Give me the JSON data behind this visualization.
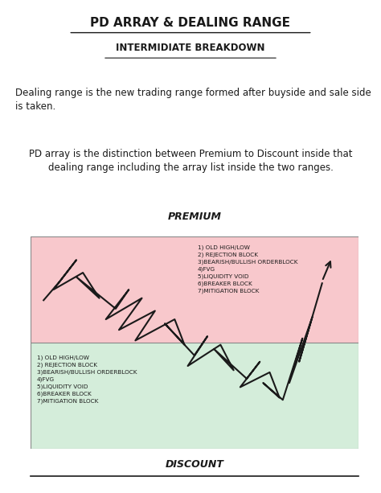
{
  "title1": "PD ARRAY & DEALING RANGE",
  "title2": "INTERMIDIATE BREAKDOWN",
  "para1": "Dealing range is the new trading range formed after buyside and sale side\nis taken.",
  "para2": "PD array is the distinction between Premium to Discount inside that\ndealing range including the array list inside the two ranges.",
  "premium_label": "PREMIUM",
  "discount_label": "DISCOUNT",
  "premium_color": "#f8c8cc",
  "discount_color": "#d4edda",
  "premium_list": "1) OLD HIGH/LOW\n2) REJECTION BLOCK\n3)BEARISH/BULLISH ORDERBLOCK\n4)FVG\n5)LIQUIDITY VOID\n6)BREAKER BLOCK\n7)MITIGATION BLOCK",
  "discount_list": "1) OLD HIGH/LOW\n2) REJECTION BLOCK\n3)BEARISH/BULLISH ORDERBLOCK\n4)FVG\n5)LIQUIDITY VOID\n6)BREAKER BLOCK\n7)MITIGATION BLOCK",
  "bg_color": "#ffffff",
  "line_color": "#1a1a1a",
  "text_color": "#1a1a1a"
}
